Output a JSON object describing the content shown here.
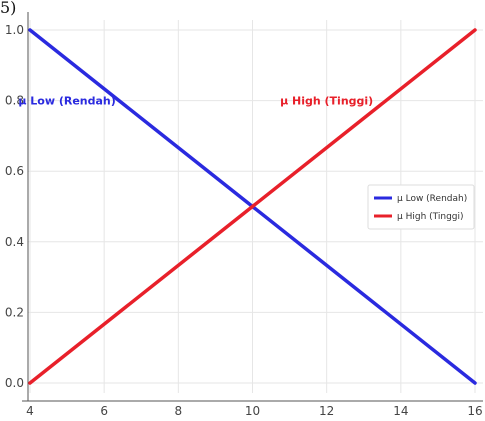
{
  "corner_label": "5)",
  "chart_data": {
    "type": "line",
    "title": "",
    "xlabel": "",
    "ylabel": "",
    "xlim": [
      4,
      16
    ],
    "ylim": [
      0,
      1
    ],
    "x_ticks": [
      4,
      6,
      8,
      10,
      12,
      14,
      16
    ],
    "y_ticks": [
      0.0,
      0.2,
      0.4,
      0.6,
      0.8,
      1.0
    ],
    "grid": true,
    "legend_position": "center-right",
    "series": [
      {
        "name": "μ Low (Rendah)",
        "color": "#2a2adf",
        "x": [
          4,
          16
        ],
        "y": [
          1.0,
          0.0
        ]
      },
      {
        "name": "μ High (Tinggi)",
        "color": "#e8202a",
        "x": [
          4,
          16
        ],
        "y": [
          0.0,
          1.0
        ]
      }
    ],
    "annotations": [
      {
        "text": "μ Low (Rendah)",
        "x": 5,
        "y": 0.8,
        "color": "#2a2adf"
      },
      {
        "text": "μ High (Tinggi)",
        "x": 12,
        "y": 0.8,
        "color": "#e8202a"
      }
    ]
  }
}
